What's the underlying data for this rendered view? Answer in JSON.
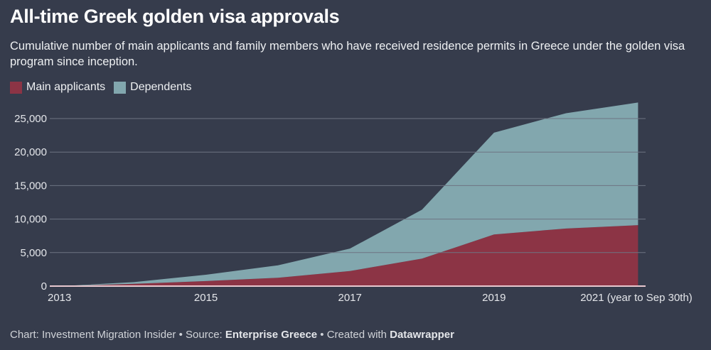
{
  "title": "All-time Greek golden visa approvals",
  "subtitle": "Cumulative number of main applicants and family members who have received residence permits in Greece under the golden visa program since inception.",
  "footer": {
    "chart_prefix": "Chart: Investment Migration Insider • Source: ",
    "source": "Enterprise Greece",
    "created_prefix": " • Created with ",
    "tool": "Datawrapper"
  },
  "colors": {
    "background": "#363c4c",
    "main": "#8c3445",
    "dependents": "#82a7ae"
  },
  "chart_data": {
    "type": "area",
    "stacked": true,
    "title": "All-time Greek golden visa approvals",
    "x": [
      2013,
      2014,
      2015,
      2016,
      2017,
      2018,
      2019,
      2020,
      2021
    ],
    "x_tick_values": [
      2013,
      2015,
      2017,
      2019,
      2021
    ],
    "x_tick_labels": [
      "2013",
      "2015",
      "2017",
      "2019",
      "2021 (year to Sep 30th)"
    ],
    "y_ticks": [
      0,
      5000,
      10000,
      15000,
      20000,
      25000
    ],
    "y_tick_labels": [
      "0",
      "5,000",
      "10,000",
      "15,000",
      "20,000",
      "25,000"
    ],
    "ylim": [
      0,
      27500
    ],
    "grid": true,
    "legend_position": "top-left",
    "series": [
      {
        "name": "Main applicants",
        "color": "#8c3445",
        "values": [
          0,
          350,
          750,
          1250,
          2250,
          4100,
          7700,
          8600,
          9100
        ]
      },
      {
        "name": "Dependents",
        "color": "#82a7ae",
        "values": [
          0,
          250,
          950,
          1850,
          3350,
          7300,
          15200,
          17200,
          18300
        ]
      }
    ]
  }
}
